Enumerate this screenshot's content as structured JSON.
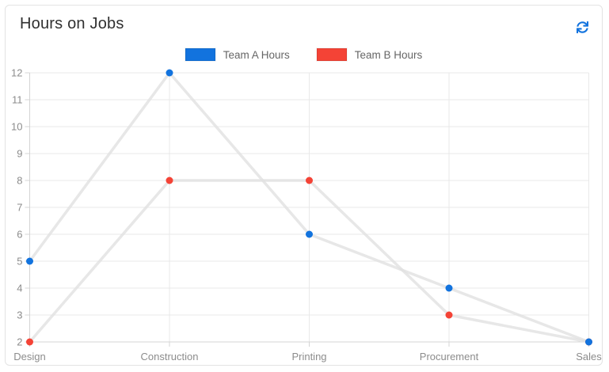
{
  "card": {
    "title": "Hours on Jobs"
  },
  "toolbar": {
    "refresh_icon": "refresh"
  },
  "colors": {
    "accent_blue": "#1273de",
    "accent_red": "#f44336",
    "series_line_gray": "#e1e1e1",
    "gridline": "#e9e9e9",
    "axis": "#d4d4d4",
    "tick_label": "#8c8c8c",
    "legend_text": "#666666",
    "title_text": "#303030",
    "card_border": "#e3e3e3"
  },
  "chart_data": {
    "type": "line",
    "title": "Hours on Jobs",
    "xlabel": "",
    "ylabel": "",
    "categories": [
      "Design",
      "Construction",
      "Printing",
      "Procurement",
      "Sales"
    ],
    "series": [
      {
        "name": "Team A Hours",
        "color": "#1273de",
        "values": [
          5,
          12,
          6,
          4,
          2
        ]
      },
      {
        "name": "Team B Hours",
        "color": "#f44336",
        "values": [
          2,
          8,
          8,
          3,
          2
        ]
      }
    ],
    "ylim": [
      2,
      12
    ],
    "ytick_step": 1,
    "yticks": [
      2,
      3,
      4,
      5,
      6,
      7,
      8,
      9,
      10,
      11,
      12
    ],
    "grid": true,
    "legend_position": "top",
    "marker_style": "filled-circle",
    "connector_line_color": "#e1e1e1"
  }
}
